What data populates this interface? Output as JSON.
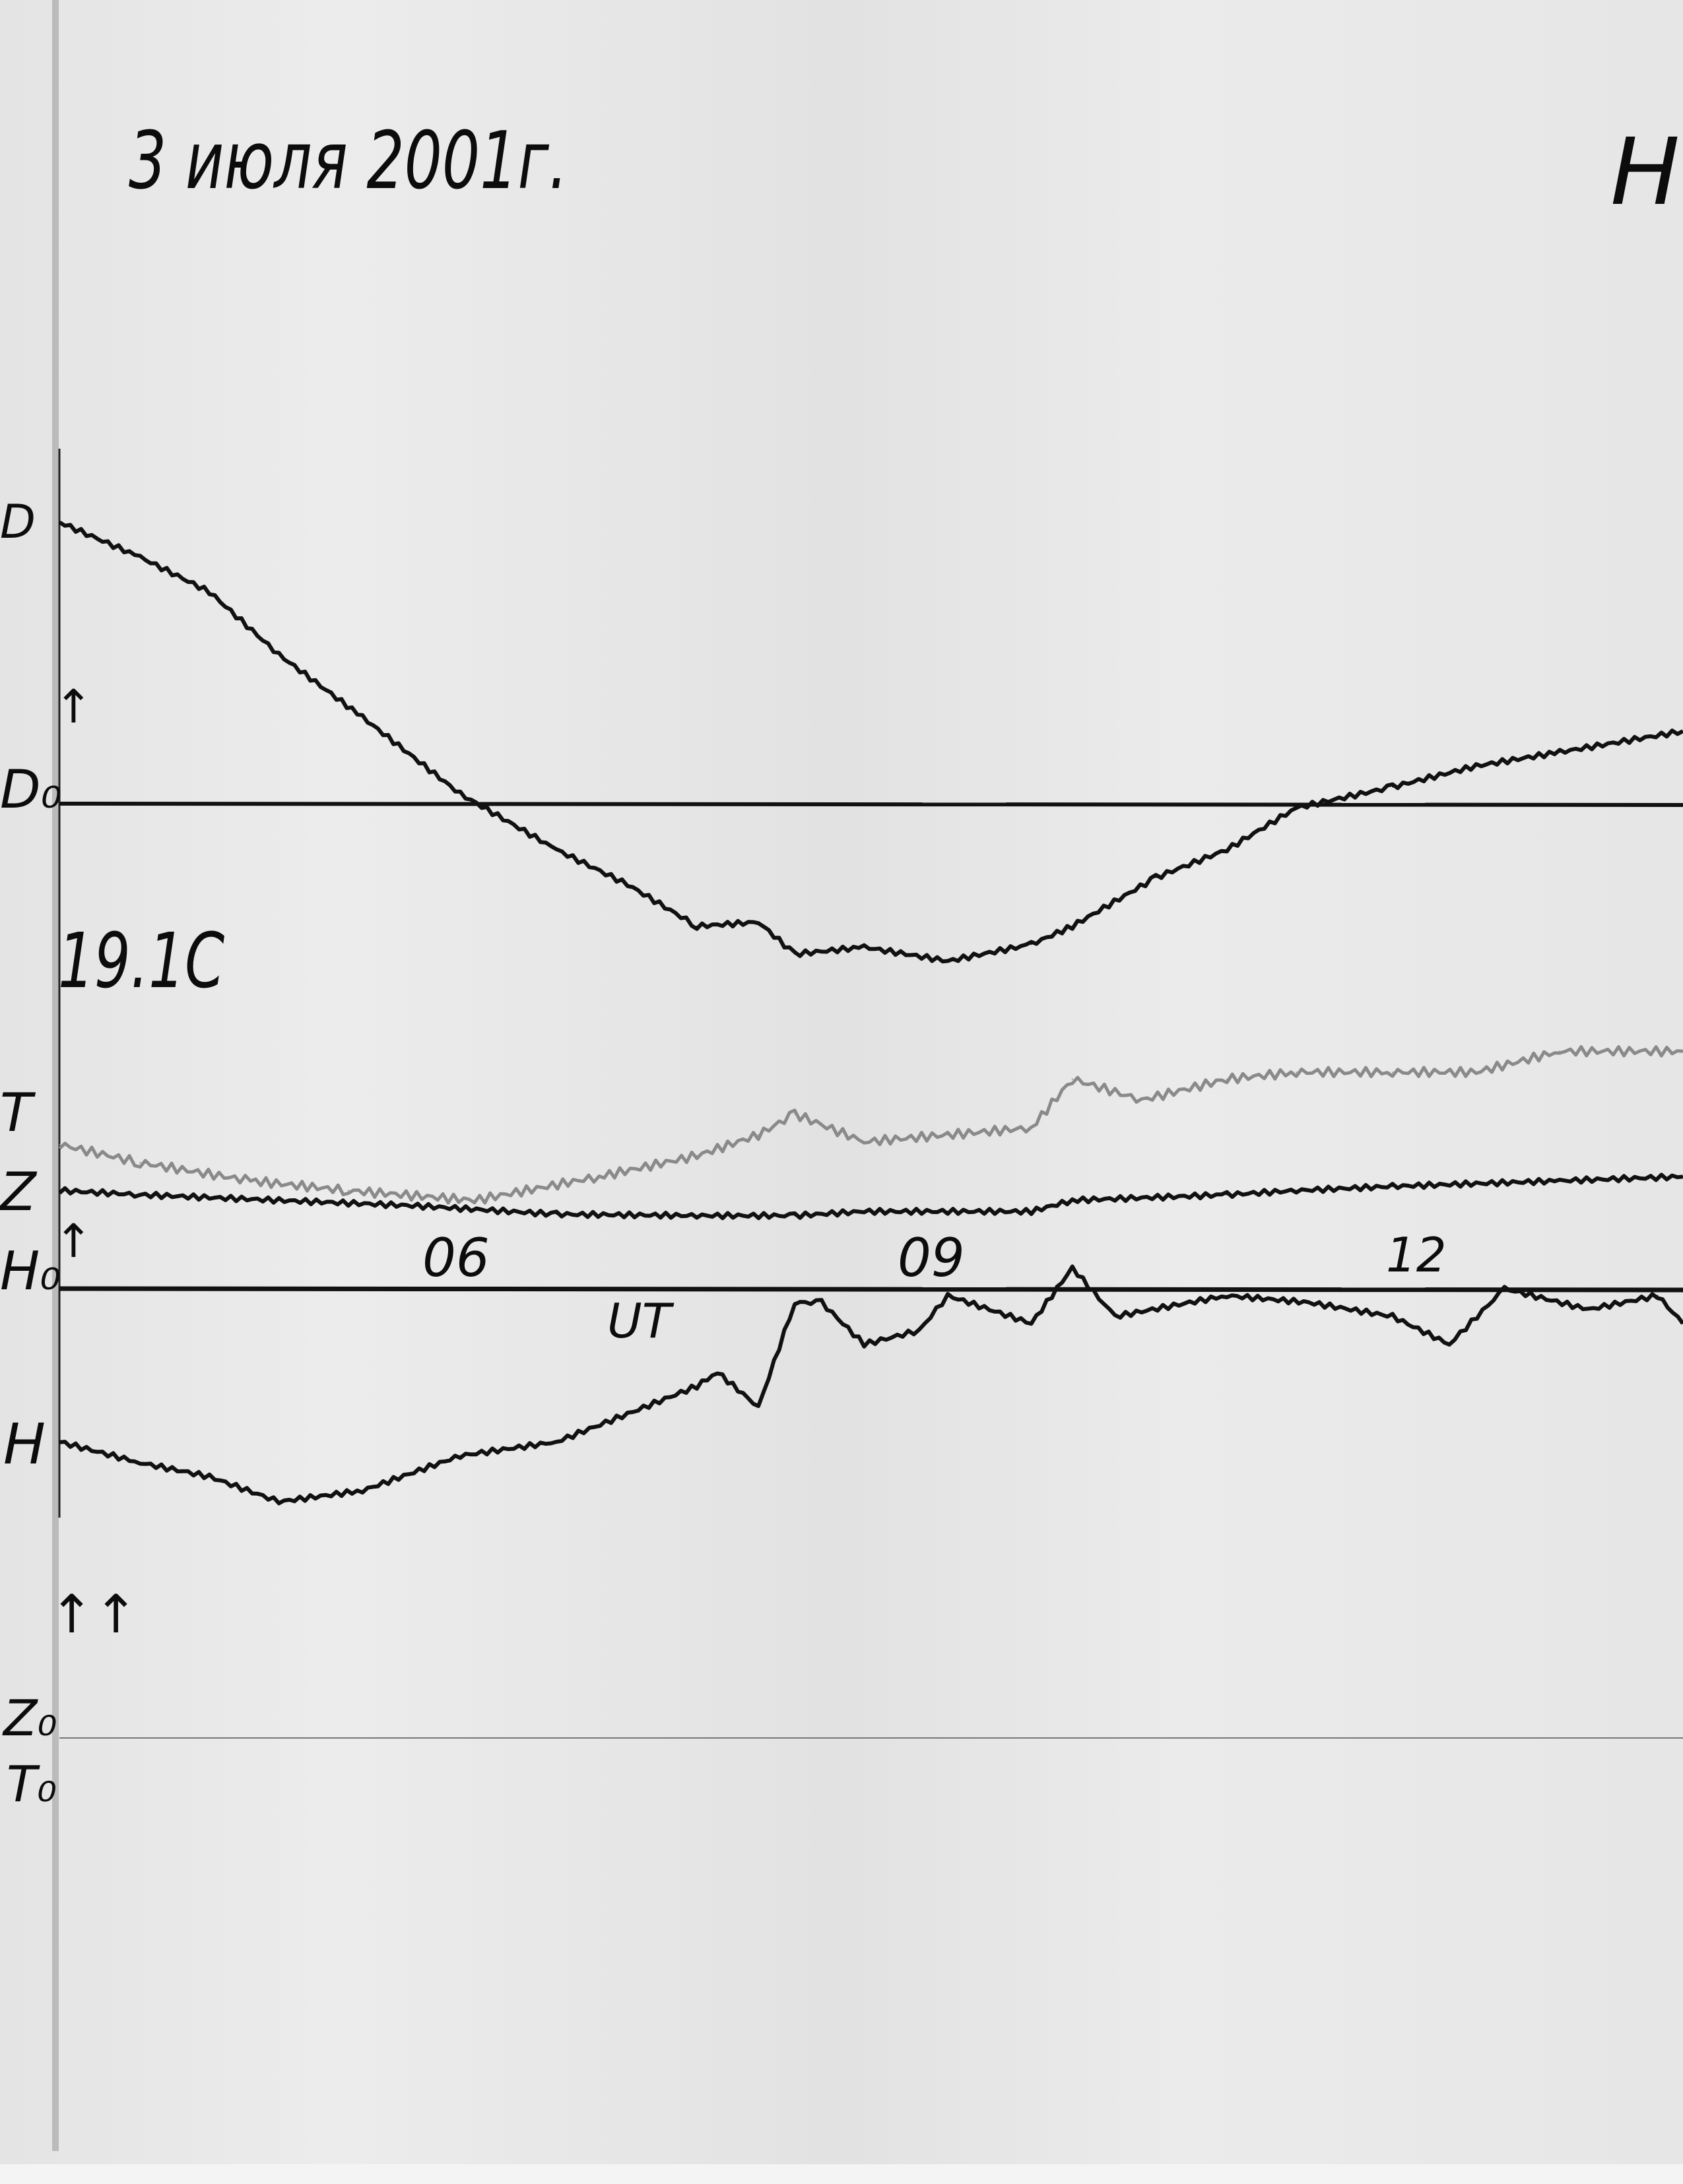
{
  "header": {
    "title": "3 июля 2001г.",
    "corner_mark": "H"
  },
  "labels": {
    "D": "D",
    "D0": "D₀",
    "temperature": "19.1C",
    "T": "T",
    "Z": "Z",
    "H0": "H₀",
    "H": "H",
    "Z0": "Z₀",
    "T0": "T₀",
    "up_arrow": "↑",
    "double_arrow": "↑↑"
  },
  "chart_data": {
    "type": "line",
    "xlabel": "UT",
    "xticks": [
      {
        "value": 6,
        "label": "06"
      },
      {
        "value": 9,
        "label": "09"
      },
      {
        "value": 12,
        "label": "12"
      }
    ],
    "xlim": [
      3.4,
      13.7
    ],
    "grid": false,
    "baselines": [
      "D0",
      "H0",
      "Z0/T0"
    ],
    "series": [
      {
        "name": "D",
        "baseline": "D0",
        "color": "#111111",
        "x": [
          3.42,
          3.93,
          4.37,
          4.81,
          5.34,
          5.96,
          6.57,
          7.02,
          7.46,
          7.85,
          8.08,
          8.52,
          9.05,
          9.58,
          9.84,
          10.37,
          10.82,
          11.26,
          11.87,
          12.4,
          12.93,
          13.71
        ],
        "y": [
          202,
          177,
          152,
          107,
          62,
          7,
          -33,
          -58,
          -88,
          -85,
          -108,
          -103,
          -113,
          -101,
          -88,
          -53,
          -33,
          -3,
          12,
          27,
          37,
          52
        ]
      },
      {
        "name": "T",
        "baseline": "Z0/T0",
        "color": "#8a8a8a",
        "x": [
          3.42,
          3.93,
          4.63,
          5.25,
          6.05,
          6.84,
          7.46,
          7.85,
          8.08,
          8.52,
          9.05,
          9.58,
          9.84,
          10.28,
          10.82,
          11.26,
          11.87,
          12.4,
          12.93,
          13.71
        ],
        "y": [
          426,
          413,
          400,
          393,
          386,
          403,
          418,
          433,
          448,
          428,
          433,
          438,
          473,
          458,
          473,
          478,
          478,
          478,
          493,
          493
        ]
      },
      {
        "name": "Z",
        "baseline": "Z0/T0",
        "color": "#111111",
        "x": [
          3.42,
          3.93,
          4.81,
          5.69,
          6.57,
          7.46,
          8.08,
          8.52,
          9.05,
          9.58,
          9.84,
          10.82,
          11.26,
          11.87,
          12.4,
          12.93,
          13.71
        ],
        "y": [
          393,
          390,
          386,
          382,
          376,
          375,
          375,
          378,
          378,
          378,
          386,
          390,
          393,
          396,
          398,
          400,
          403
        ]
      },
      {
        "name": "H",
        "baseline": "H0",
        "color": "#111111",
        "x": [
          3.42,
          3.93,
          4.37,
          4.81,
          5.34,
          5.96,
          6.57,
          7.02,
          7.46,
          7.59,
          7.85,
          8.08,
          8.25,
          8.52,
          8.87,
          9.05,
          9.58,
          9.84,
          10.11,
          10.82,
          11.34,
          11.87,
          12.23,
          12.58,
          13.11,
          13.55,
          13.71
        ],
        "y": [
          -110,
          -125,
          -135,
          -153,
          -145,
          -120,
          -110,
          -90,
          -70,
          -60,
          -85,
          -10,
          -10,
          -40,
          -30,
          -5,
          -25,
          15,
          -20,
          -5,
          -10,
          -20,
          -40,
          0,
          -15,
          -5,
          -25
        ]
      }
    ]
  }
}
